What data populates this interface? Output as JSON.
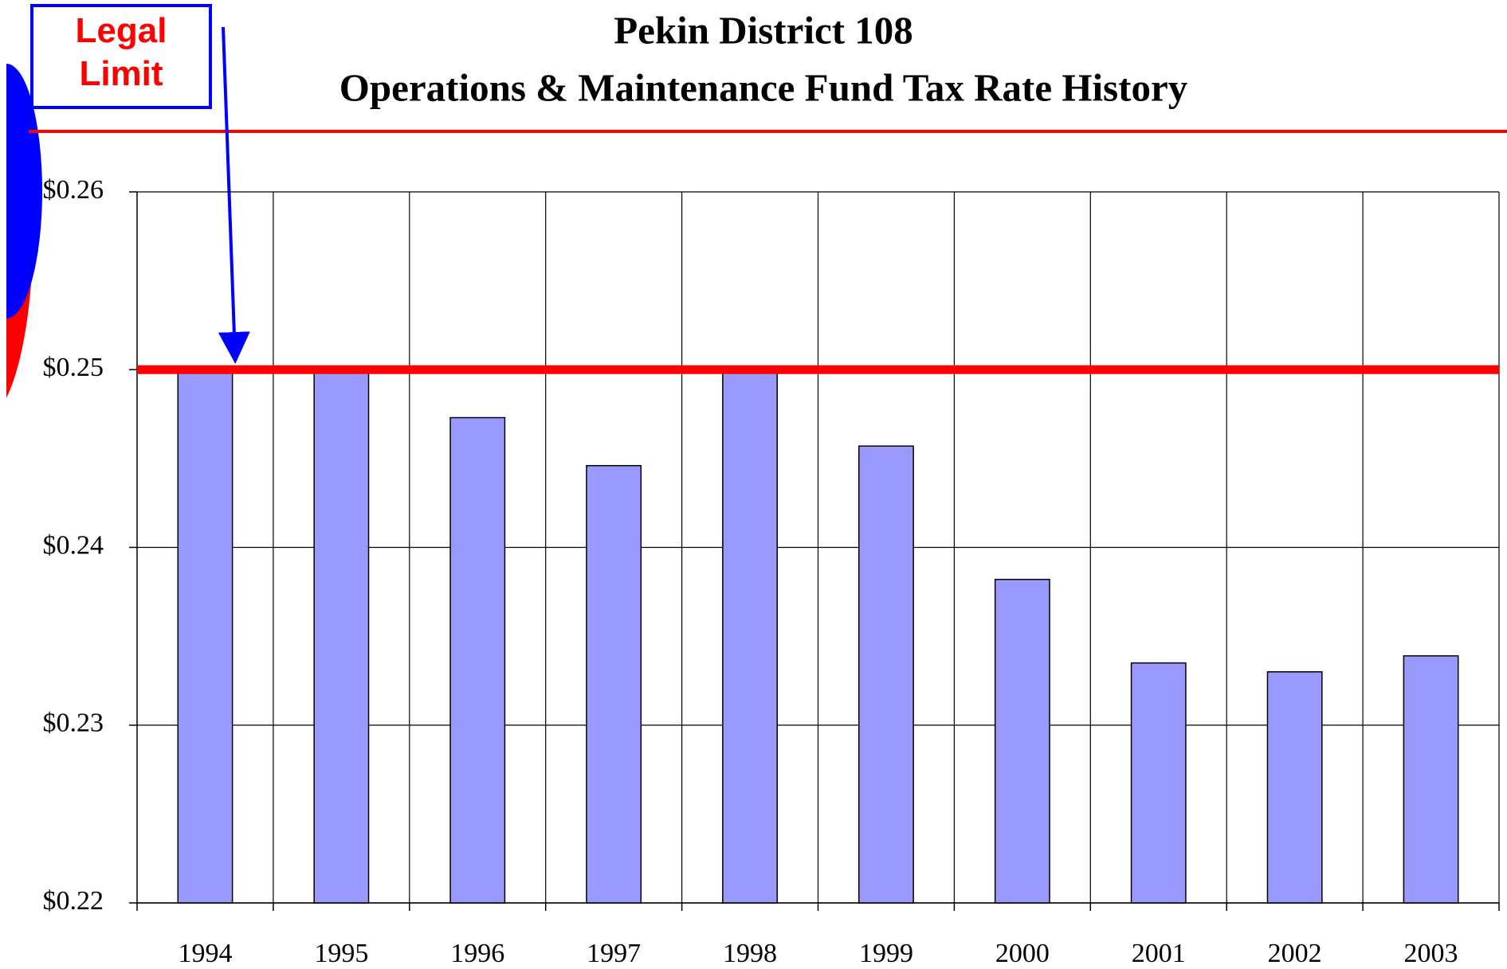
{
  "chart_data": {
    "type": "bar",
    "title": "Pekin District 108",
    "subtitle": "Operations & Maintenance Fund Tax Rate History",
    "categories": [
      "1994",
      "1995",
      "1996",
      "1997",
      "1998",
      "1999",
      "2000",
      "2001",
      "2002",
      "2003"
    ],
    "values": [
      0.25,
      0.25,
      0.2473,
      0.2446,
      0.25,
      0.2457,
      0.2382,
      0.2335,
      0.233,
      0.2339
    ],
    "color": "#9999ff",
    "ylim": [
      0.22,
      0.26
    ],
    "yticks": [
      {
        "value": 0.22,
        "label": "$0.22"
      },
      {
        "value": 0.23,
        "label": "$0.23"
      },
      {
        "value": 0.24,
        "label": "$0.24"
      },
      {
        "value": 0.25,
        "label": "$0.25"
      },
      {
        "value": 0.26,
        "label": "$0.26"
      }
    ],
    "grid": true,
    "legal_limit": {
      "label": "Legal Limit",
      "value": 0.25,
      "color": "#ff0000"
    }
  }
}
